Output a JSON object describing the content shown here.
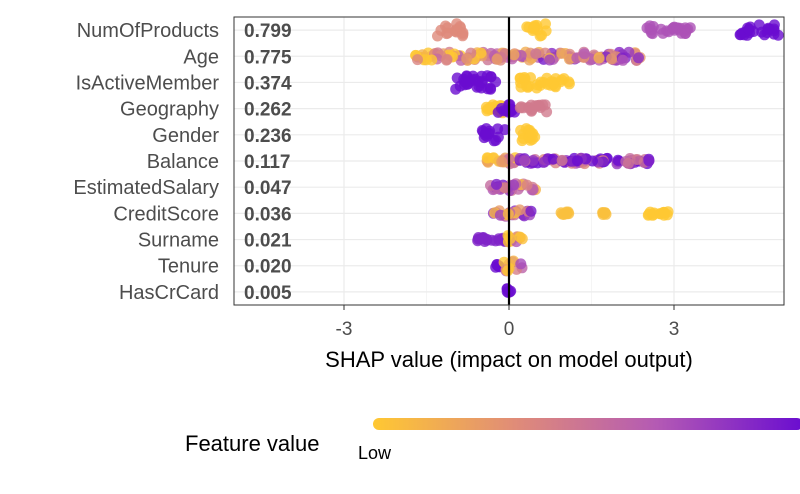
{
  "chart_data": {
    "type": "scatter",
    "subtype": "shap-beeswarm",
    "xlabel": "SHAP value (impact on model output)",
    "xlim": [
      -5,
      5
    ],
    "xticks": [
      -3,
      0,
      3
    ],
    "xtick_labels": [
      "-3",
      "0",
      "3"
    ],
    "grid": true,
    "legend": {
      "title": "Feature value",
      "low_label": "Low",
      "placement": "bottom",
      "colors": [
        "#ffc832",
        "#e08c78",
        "#b45ab4",
        "#6a0dd0"
      ]
    },
    "features": [
      {
        "name": "NumOfProducts",
        "importance": "0.799",
        "clusters": [
          {
            "x": [
              -1.3,
              -0.8
            ],
            "v": 0.35,
            "spread": 1.0
          },
          {
            "x": [
              0.3,
              0.7
            ],
            "v": 0.0,
            "spread": 1.0
          },
          {
            "x": [
              2.5,
              3.3
            ],
            "v": 0.7,
            "spread": 0.6
          },
          {
            "x": [
              4.2,
              4.9
            ],
            "v": 1.0,
            "spread": 0.8
          }
        ]
      },
      {
        "name": "Age",
        "importance": "0.775",
        "clusters": [
          {
            "x": [
              -1.7,
              0.0
            ],
            "v": 0.2,
            "spread": 0.6,
            "mixed": true
          },
          {
            "x": [
              0.0,
              2.4
            ],
            "v": 0.55,
            "spread": 0.6,
            "mixed": true
          }
        ]
      },
      {
        "name": "IsActiveMember",
        "importance": "0.374",
        "clusters": [
          {
            "x": [
              -1.0,
              -0.2
            ],
            "v": 1.0,
            "spread": 1.0
          },
          {
            "x": [
              0.2,
              1.1
            ],
            "v": 0.0,
            "spread": 0.8
          }
        ]
      },
      {
        "name": "Geography",
        "importance": "0.262",
        "clusters": [
          {
            "x": [
              -0.5,
              -0.1
            ],
            "v": 0.0,
            "spread": 0.7
          },
          {
            "x": [
              -0.2,
              0.15
            ],
            "v": 1.0,
            "spread": 0.6
          },
          {
            "x": [
              0.2,
              0.7
            ],
            "v": 0.45,
            "spread": 0.6
          }
        ]
      },
      {
        "name": "Gender",
        "importance": "0.236",
        "clusters": [
          {
            "x": [
              -0.5,
              -0.05
            ],
            "v": 1.0,
            "spread": 0.9
          },
          {
            "x": [
              0.1,
              0.5
            ],
            "v": 0.0,
            "spread": 0.9
          }
        ]
      },
      {
        "name": "Balance",
        "importance": "0.117",
        "clusters": [
          {
            "x": [
              -0.4,
              0.2
            ],
            "v": 0.1,
            "spread": 0.5,
            "mixed": true
          },
          {
            "x": [
              0.2,
              2.6
            ],
            "v": 0.8,
            "spread": 0.4,
            "mixed": true
          }
        ]
      },
      {
        "name": "EstimatedSalary",
        "importance": "0.047",
        "clusters": [
          {
            "x": [
              -0.35,
              0.5
            ],
            "v": 0.5,
            "spread": 0.5,
            "mixed": true
          }
        ]
      },
      {
        "name": "CreditScore",
        "importance": "0.036",
        "clusters": [
          {
            "x": [
              -0.3,
              0.4
            ],
            "v": 0.5,
            "spread": 0.5,
            "mixed": true
          },
          {
            "x": [
              0.9,
              1.1
            ],
            "v": 0.05,
            "spread": 0.2
          },
          {
            "x": [
              1.7,
              1.8
            ],
            "v": 0.05,
            "spread": 0.2
          },
          {
            "x": [
              2.5,
              2.9
            ],
            "v": 0.0,
            "spread": 0.3
          }
        ]
      },
      {
        "name": "Surname",
        "importance": "0.021",
        "clusters": [
          {
            "x": [
              -0.6,
              0.0
            ],
            "v": 0.9,
            "spread": 0.3
          },
          {
            "x": [
              -0.05,
              0.3
            ],
            "v": 0.3,
            "spread": 0.6,
            "mixed": true
          }
        ]
      },
      {
        "name": "Tenure",
        "importance": "0.020",
        "clusters": [
          {
            "x": [
              -0.25,
              -0.15
            ],
            "v": 1.0,
            "spread": 0.3
          },
          {
            "x": [
              -0.1,
              0.25
            ],
            "v": 0.3,
            "spread": 0.8,
            "mixed": true
          }
        ]
      },
      {
        "name": "HasCrCard",
        "importance": "0.005",
        "clusters": [
          {
            "x": [
              -0.05,
              0.05
            ],
            "v": 1.0,
            "spread": 0.9
          }
        ]
      }
    ]
  }
}
